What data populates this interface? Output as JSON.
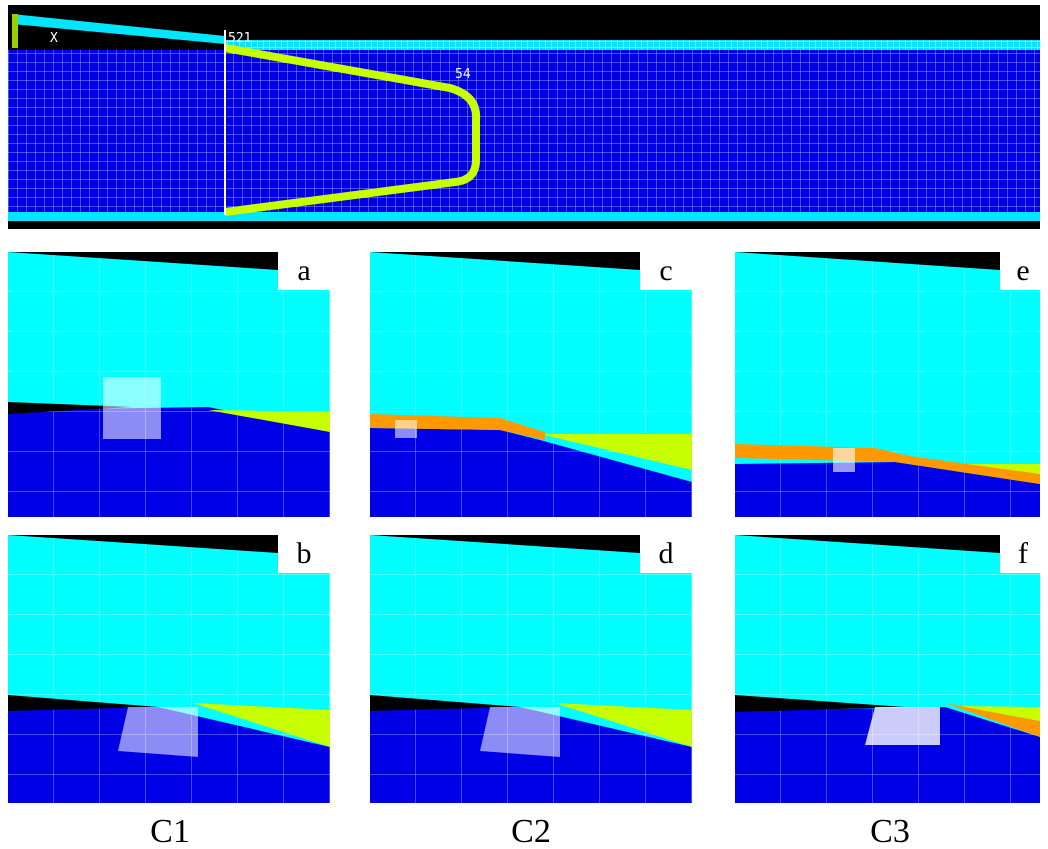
{
  "top_panel": {
    "labels": [
      "X",
      "521",
      "54"
    ]
  },
  "panels": [
    {
      "label": "a"
    },
    {
      "label": "c"
    },
    {
      "label": "e"
    },
    {
      "label": "b"
    },
    {
      "label": "d"
    },
    {
      "label": "f"
    }
  ],
  "columns": [
    "C1",
    "C2",
    "C3"
  ]
}
